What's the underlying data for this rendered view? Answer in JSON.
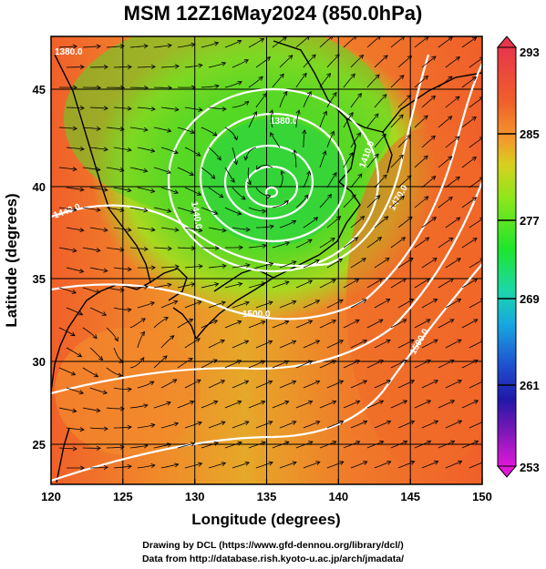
{
  "title": "MSM 12Z16May2024 (850.0hPa)",
  "x_axis": {
    "label": "Longitude (degrees)",
    "ticks": [
      "120",
      "125",
      "130",
      "135",
      "140",
      "145",
      "150"
    ]
  },
  "y_axis": {
    "label": "Latitude  (degrees)",
    "ticks": [
      "25",
      "30",
      "35",
      "40",
      "45"
    ]
  },
  "colorbar": {
    "labels": [
      "293",
      "285",
      "277",
      "269",
      "261",
      "253"
    ],
    "colors": [
      "#e8354a",
      "#f0602a",
      "#f49a2c",
      "#d8d01e",
      "#8ee61a",
      "#1ee62a",
      "#1ad8a8",
      "#18a8e0",
      "#1e50d0",
      "#2018a8",
      "#8018b8",
      "#e018d8"
    ]
  },
  "contour_labels": [
    "1380.0",
    "1440.0",
    "1410.0",
    "1470.0",
    "1500.0",
    "1500.0",
    "1440.0",
    "1380.0"
  ],
  "credits": {
    "line1": "Drawing by DCL (https://www.gfd-dennou.org/library/dcl/)",
    "line2": "Data from http://database.rish.kyoto-u.ac.jp/arch/jmadata/"
  },
  "map_layers": {
    "field": "temperature (K) shaded",
    "contours": "geopotential height (white)",
    "vectors": "wind streamlines (black)",
    "coastlines": "black"
  }
}
